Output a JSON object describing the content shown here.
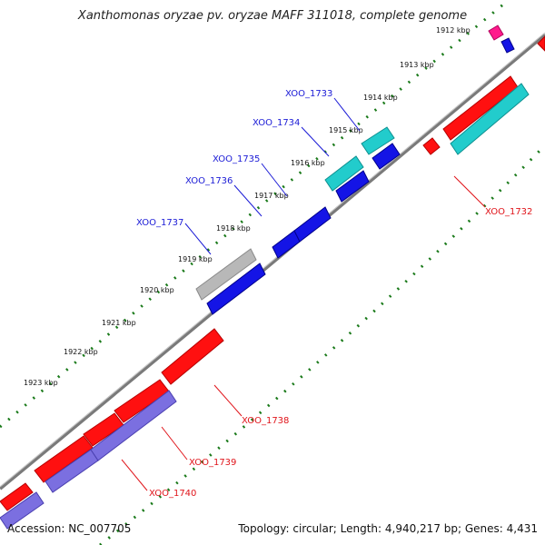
{
  "title": "Xanthomonas oryzae pv. oryzae MAFF 311018, complete genome",
  "footer": {
    "accession": "Accession: NC_007705",
    "summary": "Topology: circular; Length: 4,940,217 bp; Genes: 4,431"
  },
  "ticks": [
    "1912 kbp",
    "1913 kbp",
    "1914 kbp",
    "1915 kbp",
    "1916 kbp",
    "1917 kbp",
    "1918 kbp",
    "1919 kbp",
    "1920 kbp",
    "1921 kbp",
    "1922 kbp",
    "1923 kbp"
  ],
  "gene_labels": {
    "xoo_1732": "XOO_1732",
    "xoo_1733": "XOO_1733",
    "xoo_1734": "XOO_1734",
    "xoo_1735": "XOO_1735",
    "xoo_1736": "XOO_1736",
    "xoo_1737": "XOO_1737",
    "xoo_1738": "XOO_1738",
    "xoo_1739": "XOO_1739",
    "xoo_1740": "XOO_1740"
  },
  "colors": {
    "backbone": "#8c8c8c",
    "tick_marks": "#1a7a1a",
    "red_gene": "#ff1010",
    "blue_gene": "#1414e6",
    "cyan_gene": "#22cccc",
    "purple_gene": "#7b6fe0",
    "gray_gene": "#b8b8b8",
    "magenta_gene": "#ff1a8c"
  }
}
